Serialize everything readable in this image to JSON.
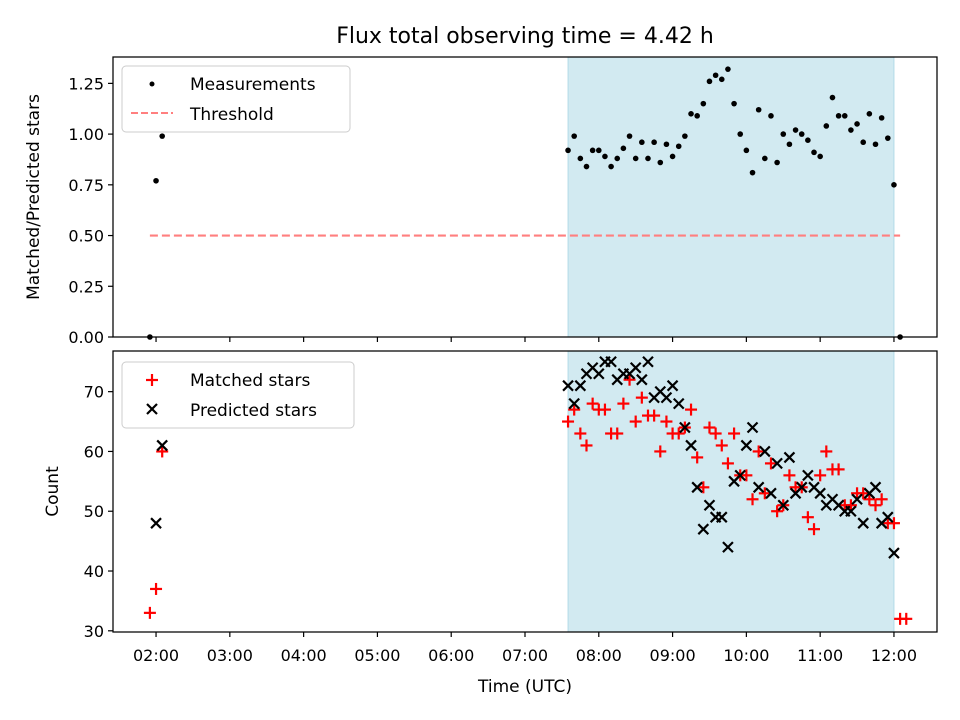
{
  "title": "Flux total observing time = 4.42 h",
  "xlabel": "Time (UTC)",
  "x_tick_labels": [
    "02:00",
    "03:00",
    "04:00",
    "05:00",
    "06:00",
    "07:00",
    "08:00",
    "09:00",
    "10:00",
    "11:00",
    "12:00"
  ],
  "colors": {
    "measurement": "#000000",
    "threshold": "#ff7f7f",
    "matched": "#ff0000",
    "predicted": "#000000",
    "observing_span": "#add8e6"
  },
  "chart_data": [
    {
      "type": "scatter",
      "ylabel": "Matched/Predicted stars",
      "xlim": [
        "01:25",
        "12:35"
      ],
      "ylim": [
        0,
        1.38
      ],
      "y_tick_labels": [
        "0.00",
        "0.25",
        "0.50",
        "0.75",
        "1.00",
        "1.25"
      ],
      "legend_position": "upper-left",
      "observing_span": [
        "07:35",
        "12:00"
      ],
      "threshold": {
        "name": "Threshold",
        "value": 0.5,
        "x_range": [
          "01:55",
          "12:05"
        ]
      },
      "series": [
        {
          "name": "Measurements",
          "marker": "dot",
          "x": [
            "01:55",
            "02:00",
            "02:05",
            "07:35",
            "07:40",
            "07:45",
            "07:50",
            "07:55",
            "08:00",
            "08:05",
            "08:10",
            "08:15",
            "08:20",
            "08:25",
            "08:30",
            "08:35",
            "08:40",
            "08:45",
            "08:50",
            "08:55",
            "09:00",
            "09:05",
            "09:10",
            "09:15",
            "09:20",
            "09:25",
            "09:30",
            "09:35",
            "09:40",
            "09:45",
            "09:50",
            "09:55",
            "10:00",
            "10:05",
            "10:10",
            "10:15",
            "10:20",
            "10:25",
            "10:30",
            "10:35",
            "10:40",
            "10:45",
            "10:50",
            "10:55",
            "11:00",
            "11:05",
            "11:10",
            "11:15",
            "11:20",
            "11:25",
            "11:30",
            "11:35",
            "11:40",
            "11:45",
            "11:50",
            "11:55",
            "12:00",
            "12:05"
          ],
          "y": [
            0.0,
            0.77,
            0.99,
            0.92,
            0.99,
            0.88,
            0.84,
            0.92,
            0.92,
            0.89,
            0.84,
            0.88,
            0.93,
            0.99,
            0.88,
            0.96,
            0.88,
            0.96,
            0.86,
            0.95,
            0.89,
            0.94,
            0.99,
            1.1,
            1.09,
            1.15,
            1.26,
            1.29,
            1.27,
            1.32,
            1.15,
            1.0,
            0.92,
            0.81,
            1.12,
            0.88,
            1.09,
            0.86,
            1.0,
            0.95,
            1.02,
            1.0,
            0.97,
            0.91,
            0.89,
            1.04,
            1.18,
            1.09,
            1.09,
            1.02,
            1.05,
            0.96,
            1.1,
            0.95,
            1.08,
            0.98,
            0.75,
            0.0
          ]
        }
      ]
    },
    {
      "type": "scatter",
      "ylabel": "Count",
      "xlim": [
        "01:25",
        "12:35"
      ],
      "ylim": [
        29.8,
        76.8
      ],
      "y_tick_labels": [
        "30",
        "40",
        "50",
        "60",
        "70"
      ],
      "legend_position": "upper-left",
      "observing_span": [
        "07:35",
        "12:00"
      ],
      "series": [
        {
          "name": "Matched stars",
          "marker": "plus",
          "x": [
            "01:55",
            "02:00",
            "02:05",
            "07:35",
            "07:40",
            "07:45",
            "07:50",
            "07:55",
            "08:00",
            "08:05",
            "08:10",
            "08:15",
            "08:20",
            "08:25",
            "08:30",
            "08:35",
            "08:40",
            "08:45",
            "08:50",
            "08:55",
            "09:00",
            "09:05",
            "09:10",
            "09:15",
            "09:20",
            "09:25",
            "09:30",
            "09:35",
            "09:40",
            "09:45",
            "09:50",
            "09:55",
            "10:00",
            "10:05",
            "10:10",
            "10:15",
            "10:20",
            "10:25",
            "10:30",
            "10:35",
            "10:40",
            "10:45",
            "10:50",
            "10:55",
            "11:00",
            "11:05",
            "11:10",
            "11:15",
            "11:20",
            "11:25",
            "11:30",
            "11:35",
            "11:40",
            "11:45",
            "11:50",
            "11:55",
            "12:00",
            "12:05",
            "12:10"
          ],
          "y": [
            33,
            37,
            60,
            65,
            67,
            63,
            61,
            68,
            67,
            67,
            63,
            63,
            68,
            72,
            65,
            69,
            66,
            66,
            60,
            65,
            63,
            63,
            64,
            67,
            59,
            54,
            64,
            63,
            61,
            58,
            63,
            56,
            56,
            52,
            60,
            53,
            58,
            50,
            51,
            56,
            54,
            54,
            49,
            47,
            56,
            60,
            57,
            57,
            51,
            51,
            53,
            53,
            52,
            51,
            52,
            48,
            48,
            32,
            32
          ]
        },
        {
          "name": "Predicted stars",
          "marker": "x",
          "x": [
            "02:00",
            "02:05",
            "07:35",
            "07:40",
            "07:45",
            "07:50",
            "07:55",
            "08:00",
            "08:05",
            "08:10",
            "08:15",
            "08:20",
            "08:25",
            "08:30",
            "08:35",
            "08:40",
            "08:45",
            "08:50",
            "08:55",
            "09:00",
            "09:05",
            "09:10",
            "09:15",
            "09:20",
            "09:25",
            "09:30",
            "09:35",
            "09:40",
            "09:45",
            "09:50",
            "09:55",
            "10:00",
            "10:05",
            "10:10",
            "10:15",
            "10:20",
            "10:25",
            "10:30",
            "10:35",
            "10:40",
            "10:45",
            "10:50",
            "10:55",
            "11:00",
            "11:05",
            "11:10",
            "11:15",
            "11:20",
            "11:25",
            "11:30",
            "11:35",
            "11:40",
            "11:45",
            "11:50",
            "11:55",
            "12:00"
          ],
          "y": [
            48,
            61,
            71,
            68,
            71,
            73,
            74,
            73,
            75,
            75,
            72,
            73,
            73,
            74,
            72,
            75,
            69,
            70,
            69,
            71,
            68,
            64,
            61,
            54,
            47,
            51,
            49,
            49,
            44,
            55,
            56,
            61,
            64,
            54,
            60,
            53,
            58,
            51,
            59,
            53,
            54,
            56,
            54,
            53,
            51,
            52,
            51,
            50,
            50,
            52,
            48,
            53,
            54,
            48,
            49,
            43
          ]
        }
      ]
    }
  ]
}
